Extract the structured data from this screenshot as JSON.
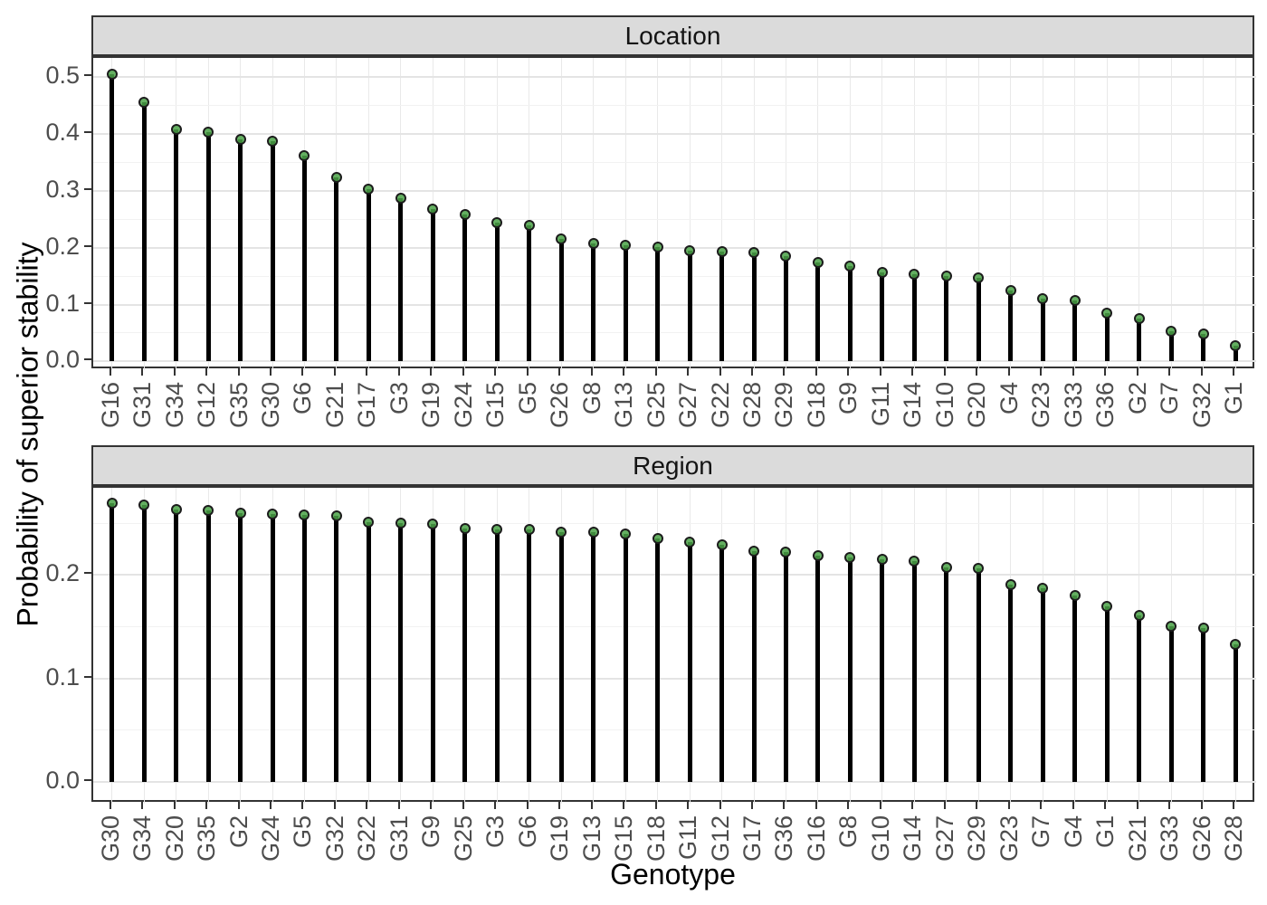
{
  "figure": {
    "xlabel": "Genotype",
    "ylabel": "Probability of superior stability"
  },
  "style": {
    "point_fill": "#4daf4a",
    "point_border": "#1a1a1a",
    "stem_color": "#000000",
    "strip_fill": "#DBDBDB",
    "panel_border": "#333333",
    "grid_major": "#E4E4E4",
    "grid_minor": "#F2F2F2",
    "axis_text_color": "#4D4D4D"
  },
  "chart_data": [
    {
      "type": "bar",
      "style": "lollipop",
      "facet": "Location",
      "grid": true,
      "categories": [
        "G16",
        "G31",
        "G34",
        "G12",
        "G35",
        "G30",
        "G6",
        "G21",
        "G17",
        "G3",
        "G19",
        "G24",
        "G15",
        "G5",
        "G26",
        "G8",
        "G13",
        "G25",
        "G27",
        "G22",
        "G28",
        "G29",
        "G18",
        "G9",
        "G11",
        "G14",
        "G10",
        "G20",
        "G4",
        "G23",
        "G33",
        "G36",
        "G2",
        "G7",
        "G32",
        "G1"
      ],
      "values": [
        0.505,
        0.456,
        0.408,
        0.404,
        0.391,
        0.387,
        0.362,
        0.323,
        0.303,
        0.287,
        0.268,
        0.258,
        0.244,
        0.239,
        0.216,
        0.207,
        0.204,
        0.201,
        0.195,
        0.193,
        0.191,
        0.185,
        0.174,
        0.168,
        0.156,
        0.154,
        0.15,
        0.147,
        0.125,
        0.11,
        0.108,
        0.085,
        0.075,
        0.053,
        0.048,
        0.027
      ],
      "yticks": [
        "0.0",
        "0.1",
        "0.2",
        "0.3",
        "0.4",
        "0.5"
      ],
      "minor_step": 0.05,
      "ylim": [
        -0.0154,
        0.534
      ]
    },
    {
      "type": "bar",
      "style": "lollipop",
      "facet": "Region",
      "grid": true,
      "categories": [
        "G30",
        "G34",
        "G20",
        "G35",
        "G2",
        "G24",
        "G5",
        "G32",
        "G22",
        "G31",
        "G9",
        "G25",
        "G3",
        "G6",
        "G19",
        "G13",
        "G15",
        "G18",
        "G11",
        "G12",
        "G17",
        "G36",
        "G16",
        "G8",
        "G10",
        "G14",
        "G27",
        "G29",
        "G23",
        "G7",
        "G4",
        "G1",
        "G21",
        "G33",
        "G26",
        "G28"
      ],
      "values": [
        0.269,
        0.268,
        0.263,
        0.262,
        0.26,
        0.259,
        0.258,
        0.257,
        0.251,
        0.25,
        0.249,
        0.245,
        0.244,
        0.244,
        0.241,
        0.241,
        0.24,
        0.235,
        0.232,
        0.229,
        0.223,
        0.222,
        0.219,
        0.217,
        0.215,
        0.213,
        0.207,
        0.206,
        0.191,
        0.187,
        0.18,
        0.17,
        0.161,
        0.15,
        0.149,
        0.133
      ],
      "yticks": [
        "0.0",
        "0.1",
        "0.2"
      ],
      "minor_step": 0.05,
      "ylim": [
        -0.021,
        0.2842
      ]
    }
  ]
}
